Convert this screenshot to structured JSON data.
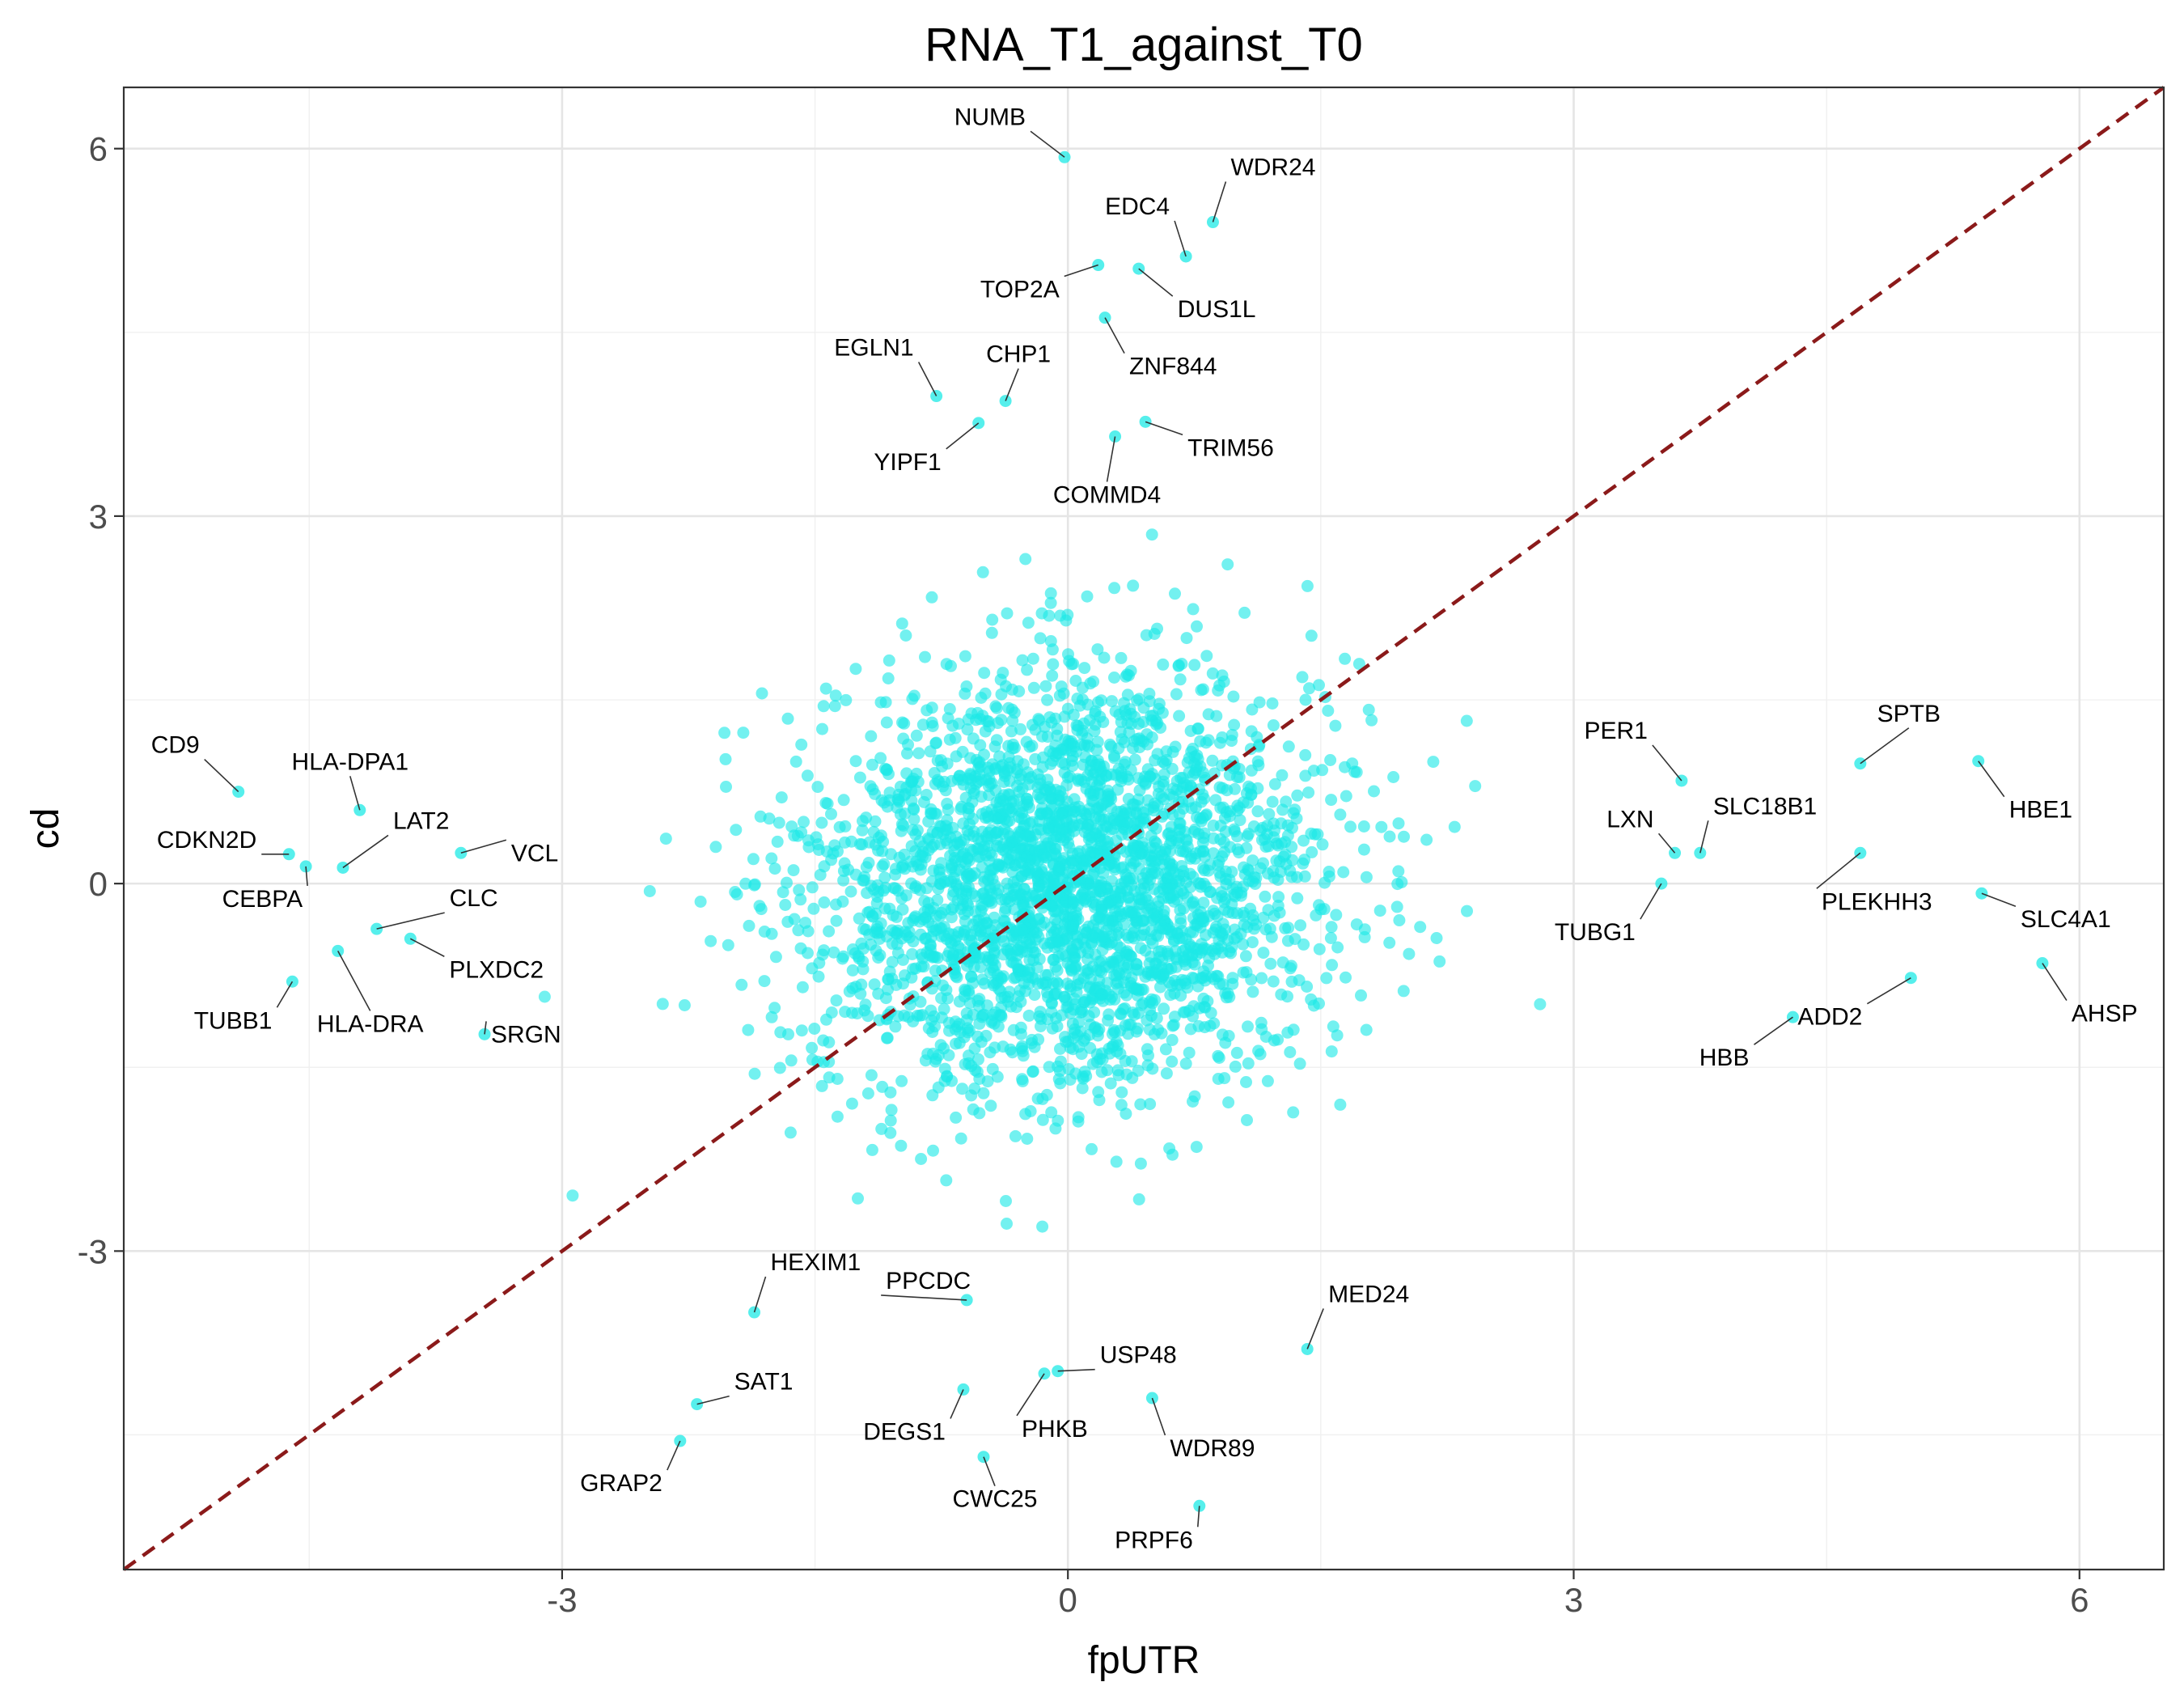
{
  "chart_data": {
    "type": "scatter",
    "title": "RNA_T1_against_T0",
    "xlabel": "fpUTR",
    "ylabel": "cd",
    "xlim": [
      -5.6,
      6.5
    ],
    "ylim": [
      -5.6,
      6.5
    ],
    "x_ticks": [
      -3,
      0,
      3,
      6
    ],
    "y_ticks": [
      -3,
      0,
      3,
      6
    ],
    "x_tick_labels": [
      "-3",
      "0",
      "3",
      "6"
    ],
    "y_tick_labels": [
      "-3",
      "0",
      "3",
      "6"
    ],
    "grid": true,
    "legend": "none",
    "point_color": "#1DE9E6",
    "reference_line": {
      "type": "identity",
      "slope": 1,
      "intercept": 0,
      "style": "dashed",
      "color": "#8B1A1A"
    },
    "background_cloud": {
      "n_points": 3000,
      "center": [
        0.0,
        0.0
      ],
      "sd_x": 0.75,
      "sd_y": 0.85,
      "note": "dense unlabeled cloud of genes"
    },
    "labeled_points": [
      {
        "label": "NUMB",
        "x": -0.02,
        "y": 5.93
      },
      {
        "label": "WDR24",
        "x": 0.86,
        "y": 5.4
      },
      {
        "label": "EDC4",
        "x": 0.7,
        "y": 5.12
      },
      {
        "label": "TOP2A",
        "x": 0.18,
        "y": 5.05
      },
      {
        "label": "DUS1L",
        "x": 0.42,
        "y": 5.02
      },
      {
        "label": "ZNF844",
        "x": 0.22,
        "y": 4.62
      },
      {
        "label": "EGLN1",
        "x": -0.78,
        "y": 3.98
      },
      {
        "label": "CHP1",
        "x": -0.37,
        "y": 3.94
      },
      {
        "label": "TRIM56",
        "x": 0.46,
        "y": 3.77
      },
      {
        "label": "YIPF1",
        "x": -0.53,
        "y": 3.76
      },
      {
        "label": "COMMD4",
        "x": 0.28,
        "y": 3.65
      },
      {
        "label": "CD9",
        "x": -4.92,
        "y": 0.75
      },
      {
        "label": "HLA-DPA1",
        "x": -4.2,
        "y": 0.6
      },
      {
        "label": "LAT2",
        "x": -4.3,
        "y": 0.13
      },
      {
        "label": "CDKN2D",
        "x": -4.62,
        "y": 0.24
      },
      {
        "label": "VCL",
        "x": -3.6,
        "y": 0.25
      },
      {
        "label": "CEBPA",
        "x": -4.52,
        "y": 0.14
      },
      {
        "label": "CLC",
        "x": -4.1,
        "y": -0.37
      },
      {
        "label": "PLXDC2",
        "x": -3.9,
        "y": -0.45
      },
      {
        "label": "HLA-DRA",
        "x": -4.33,
        "y": -0.55
      },
      {
        "label": "TUBB1",
        "x": -4.6,
        "y": -0.8
      },
      {
        "label": "SRGN",
        "x": -3.46,
        "y": -1.23
      },
      {
        "label": "PER1",
        "x": 3.64,
        "y": 0.84
      },
      {
        "label": "SPTB",
        "x": 4.7,
        "y": 0.98
      },
      {
        "label": "HBE1",
        "x": 5.4,
        "y": 1.0
      },
      {
        "label": "SLC18B1",
        "x": 3.75,
        "y": 0.25
      },
      {
        "label": "LXN",
        "x": 3.6,
        "y": 0.25
      },
      {
        "label": "TUBG1",
        "x": 3.52,
        "y": 0.0
      },
      {
        "label": "PLEKHH3",
        "x": 4.7,
        "y": 0.25
      },
      {
        "label": "SLC4A1",
        "x": 5.42,
        "y": -0.08
      },
      {
        "label": "AHSP",
        "x": 5.78,
        "y": -0.65
      },
      {
        "label": "ADD2",
        "x": 5.0,
        "y": -0.77
      },
      {
        "label": "HBB",
        "x": 4.3,
        "y": -1.09
      },
      {
        "label": "HEXIM1",
        "x": -1.86,
        "y": -3.5
      },
      {
        "label": "PPCDC",
        "x": -0.6,
        "y": -3.4
      },
      {
        "label": "MED24",
        "x": 1.42,
        "y": -3.8
      },
      {
        "label": "USP48",
        "x": -0.06,
        "y": -3.98
      },
      {
        "label": "SAT1",
        "x": -2.2,
        "y": -4.25
      },
      {
        "label": "PHKB",
        "x": -0.14,
        "y": -4.0
      },
      {
        "label": "DEGS1",
        "x": -0.62,
        "y": -4.13
      },
      {
        "label": "WDR89",
        "x": 0.5,
        "y": -4.2
      },
      {
        "label": "GRAP2",
        "x": -2.3,
        "y": -4.55
      },
      {
        "label": "CWC25",
        "x": -0.5,
        "y": -4.68
      },
      {
        "label": "PRPF6",
        "x": 0.78,
        "y": -5.08
      }
    ]
  }
}
